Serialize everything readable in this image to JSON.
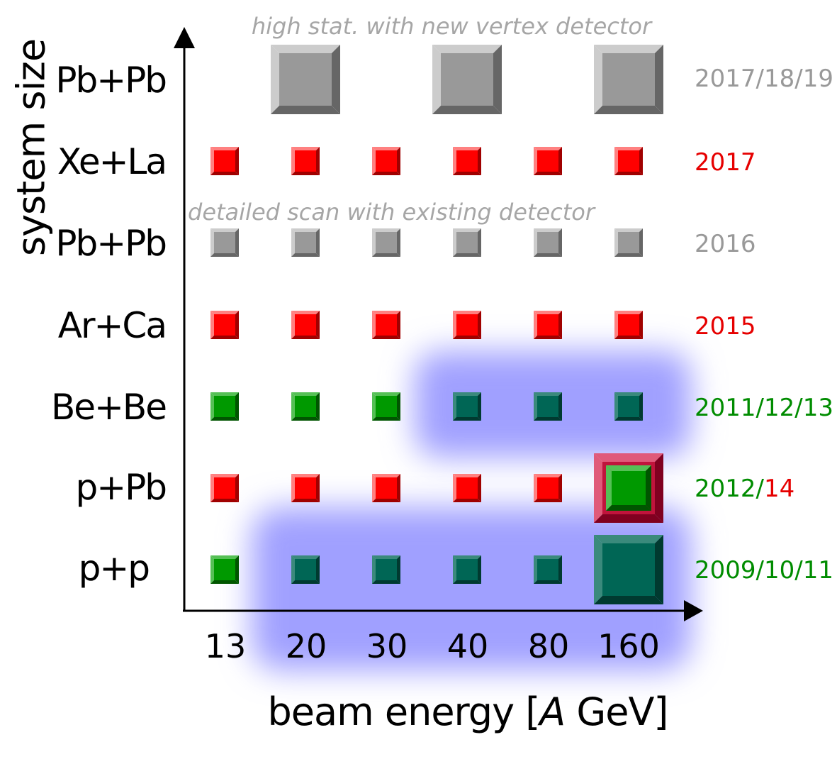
{
  "axes": {
    "y_title": "system size",
    "x_title_prefix": "beam energy [",
    "x_title_italic": "A",
    "x_title_suffix": " GeV]"
  },
  "energies": [
    "13",
    "20",
    "30",
    "40",
    "80",
    "160"
  ],
  "notes": {
    "high_stat": "high stat. with new vertex detector",
    "detailed_scan": "detailed scan with existing detector"
  },
  "rows": [
    {
      "system": "Pb+Pb",
      "year": "2017/18/19",
      "year_color": "#999999",
      "cells": [
        "none",
        "big-gray",
        "none",
        "big-gray",
        "none",
        "big-gray"
      ]
    },
    {
      "system": "Xe+La",
      "year": "2017",
      "year_color": "#e60000",
      "cells": [
        "red",
        "red",
        "red",
        "red",
        "red",
        "red"
      ]
    },
    {
      "system": "Pb+Pb",
      "year": "2016",
      "year_color": "#999999",
      "cells": [
        "gray",
        "gray",
        "gray",
        "gray",
        "gray",
        "gray"
      ]
    },
    {
      "system": "Ar+Ca",
      "year": "2015",
      "year_color": "#e60000",
      "cells": [
        "red",
        "red",
        "red",
        "red",
        "red",
        "red"
      ]
    },
    {
      "system": "Be+Be",
      "year": "2011/12/13",
      "year_color": "#008c00",
      "cells": [
        "green",
        "green",
        "green",
        "teal",
        "teal",
        "teal"
      ]
    },
    {
      "system": "p+Pb",
      "year_parts": [
        "2012/",
        "14"
      ],
      "year_part_colors": [
        "#008c00",
        "#e60000"
      ],
      "cells": [
        "red",
        "red",
        "red",
        "red",
        "red",
        "big-red-green"
      ]
    },
    {
      "system": "p+p",
      "year": "2009/10/11",
      "year_color": "#008c00",
      "cells": [
        "green",
        "teal",
        "teal",
        "teal",
        "teal",
        "big-teal"
      ]
    }
  ],
  "colors": {
    "red": "#ff0000",
    "gray": "#999999",
    "green": "#009900",
    "teal": "#006655",
    "highlight": "#a0a0ff",
    "note": "#a6a6a6"
  }
}
